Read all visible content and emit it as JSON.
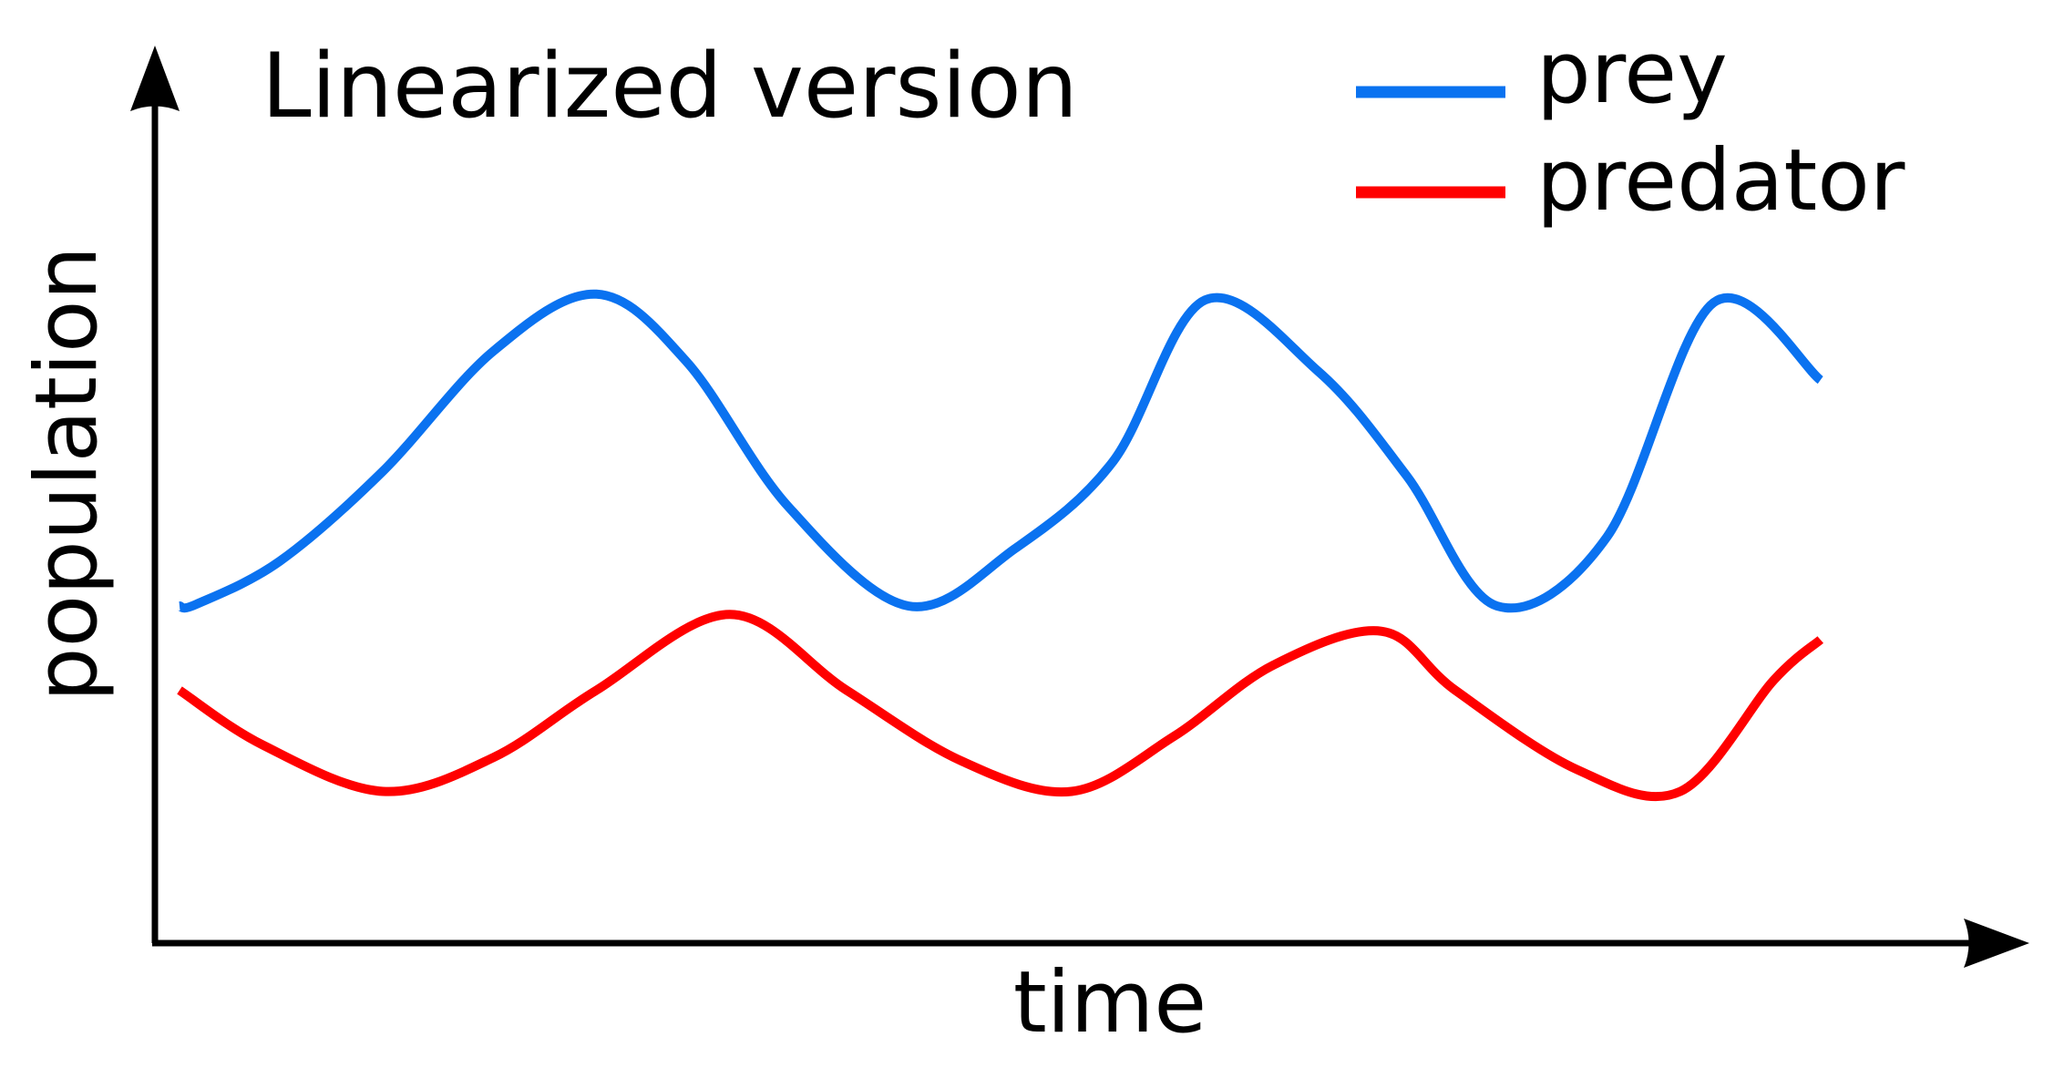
{
  "chart_data": {
    "type": "line",
    "title": "Linearized version",
    "xlabel": "time",
    "ylabel": "population",
    "grid": false,
    "legend_position": "top-right",
    "xlim": [
      0,
      10
    ],
    "ylim": [
      0,
      10
    ],
    "series": [
      {
        "name": "prey",
        "color": "#0a72f0",
        "x": [
          0,
          0.1,
          0.6,
          1.22,
          1.88,
          2.5,
          3.04,
          3.65,
          4.37,
          5.01,
          5.6,
          6.15,
          6.83,
          7.36,
          7.9,
          8.56,
          9.2,
          9.84
        ],
        "y": [
          4.0,
          4.02,
          4.53,
          5.6,
          7.02,
          7.7,
          6.9,
          5.18,
          4.0,
          4.68,
          5.72,
          7.63,
          6.78,
          5.54,
          4.0,
          4.82,
          7.6,
          6.68
        ]
      },
      {
        "name": "predator",
        "color": "#ff0000",
        "x": [
          0,
          0.5,
          1.22,
          1.88,
          2.5,
          3.3,
          4.0,
          4.69,
          5.35,
          5.96,
          6.56,
          7.21,
          7.65,
          8.38,
          9.0,
          9.56,
          9.84
        ],
        "y": [
          3.0,
          2.35,
          1.8,
          2.2,
          3.0,
          3.9,
          3.0,
          2.16,
          1.8,
          2.45,
          3.3,
          3.7,
          3.0,
          2.06,
          1.8,
          3.12,
          3.6
        ]
      }
    ]
  }
}
